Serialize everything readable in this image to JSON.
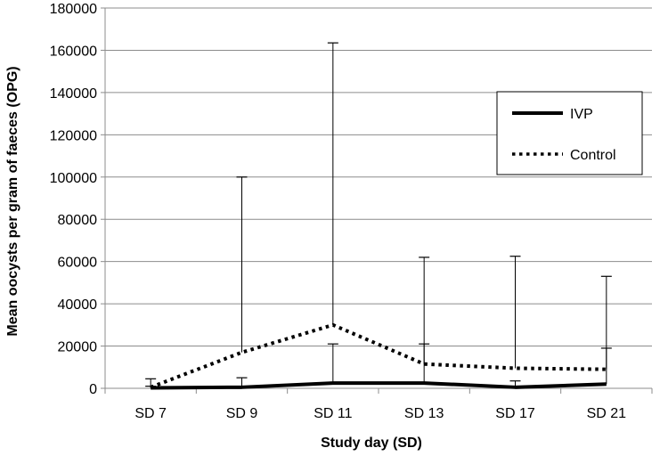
{
  "chart_data": {
    "type": "line",
    "title": "",
    "xlabel": "Study day (SD)",
    "ylabel": "Mean oocysts per gram of faeces (OPG)",
    "categories": [
      "SD 7",
      "SD 9",
      "SD 11",
      "SD 13",
      "SD 17",
      "SD 21"
    ],
    "ylim": [
      0,
      180000
    ],
    "yticks": [
      0,
      20000,
      40000,
      60000,
      80000,
      100000,
      120000,
      140000,
      160000,
      180000
    ],
    "ytick_labels": [
      "0",
      "20000",
      "40000",
      "60000",
      "80000",
      "100000",
      "120000",
      "140000",
      "160000",
      "180000"
    ],
    "grid": true,
    "legend_position": "top-right",
    "series": [
      {
        "name": "IVP",
        "style": "solid",
        "color": "#000000",
        "values": [
          200,
          500,
          2500,
          2500,
          500,
          2000
        ],
        "error_upper": [
          4500,
          5000,
          21000,
          21000,
          3500,
          19000
        ]
      },
      {
        "name": "Control",
        "style": "dotted",
        "color": "#000000",
        "values": [
          500,
          17000,
          30000,
          11500,
          9500,
          9000
        ],
        "error_upper": [
          1000,
          100000,
          163500,
          62000,
          62500,
          53000
        ]
      }
    ]
  }
}
